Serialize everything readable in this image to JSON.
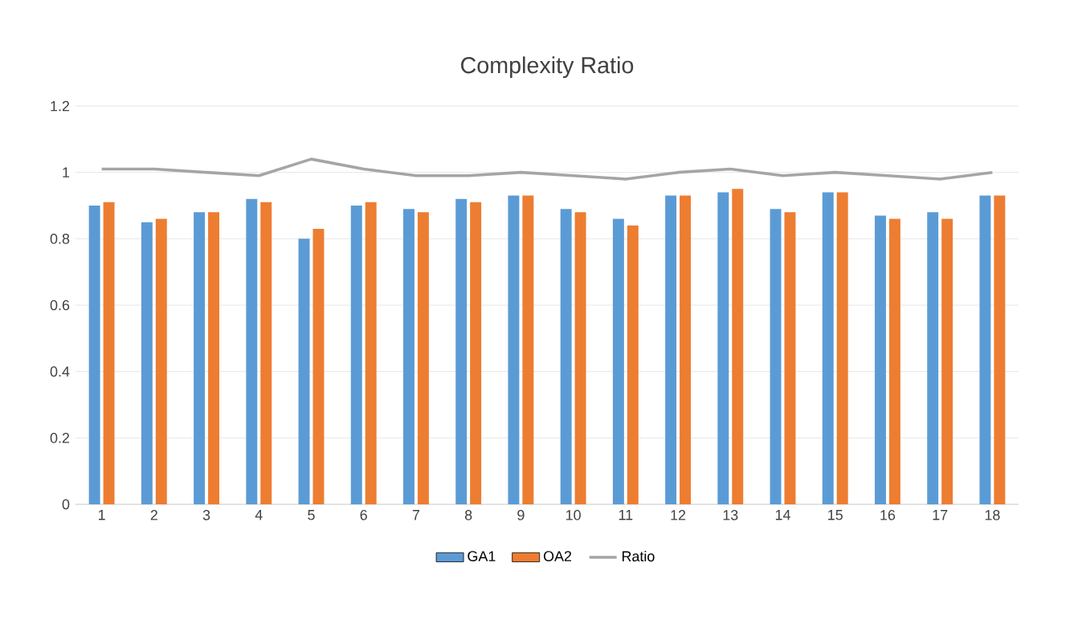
{
  "chart_data": {
    "type": "bar",
    "title": "Complexity Ratio",
    "categories": [
      "1",
      "2",
      "3",
      "4",
      "5",
      "6",
      "7",
      "8",
      "9",
      "10",
      "11",
      "12",
      "13",
      "14",
      "15",
      "16",
      "17",
      "18"
    ],
    "series": [
      {
        "name": "GA1",
        "color": "#5b9bd5",
        "values": [
          0.9,
          0.85,
          0.88,
          0.92,
          0.8,
          0.9,
          0.89,
          0.92,
          0.93,
          0.89,
          0.86,
          0.93,
          0.94,
          0.89,
          0.94,
          0.87,
          0.88,
          0.93
        ]
      },
      {
        "name": "OA2",
        "color": "#ed7d31",
        "values": [
          0.91,
          0.86,
          0.88,
          0.91,
          0.83,
          0.91,
          0.88,
          0.91,
          0.93,
          0.88,
          0.84,
          0.93,
          0.95,
          0.88,
          0.94,
          0.86,
          0.86,
          0.93
        ]
      },
      {
        "name": "Ratio",
        "type": "line",
        "color": "#a5a5a5",
        "values": [
          1.01,
          1.01,
          1.0,
          0.99,
          1.04,
          1.01,
          0.99,
          0.99,
          1.0,
          0.99,
          0.98,
          1.0,
          1.01,
          0.99,
          1.0,
          0.99,
          0.98,
          1.0
        ]
      }
    ],
    "ylim": [
      0,
      1.2
    ],
    "yticks": [
      0,
      0.2,
      0.4,
      0.6,
      0.8,
      1,
      1.2
    ],
    "grid": "y",
    "legend": "bottom"
  }
}
